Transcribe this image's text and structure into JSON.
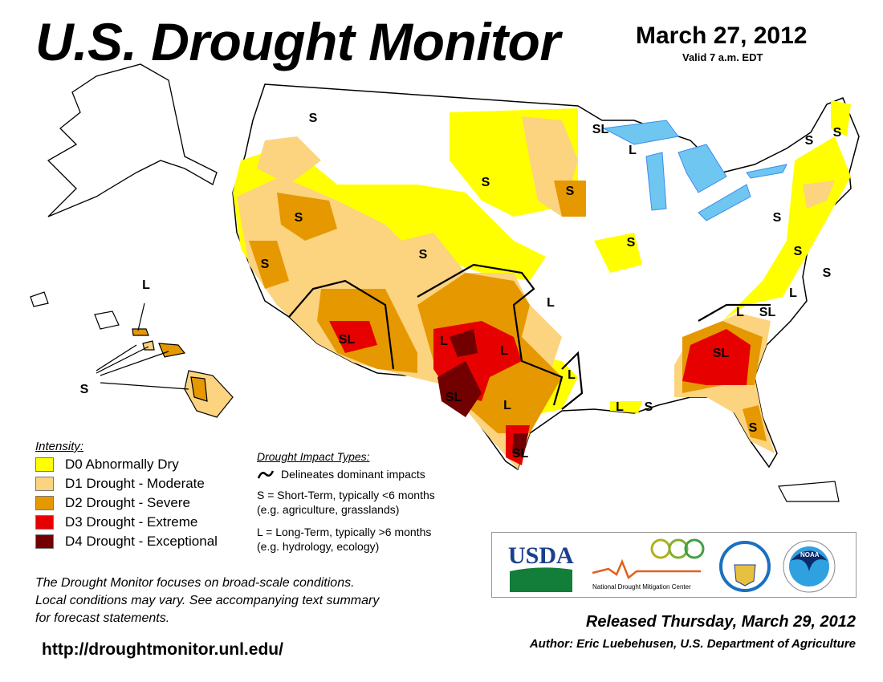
{
  "header": {
    "title": "U.S. Drought Monitor",
    "date": "March 27, 2012",
    "valid": "Valid 7 a.m. EDT"
  },
  "colors": {
    "D0": "#ffff00",
    "D1": "#fcd37f",
    "D2": "#e69800",
    "D3": "#e60000",
    "D4": "#730000",
    "water": "#6fc6f0",
    "river": "#3b8cf0"
  },
  "legend": {
    "title": "Intensity:",
    "items": [
      {
        "code": "D0",
        "label": "D0 Abnormally Dry",
        "color": "#ffff00"
      },
      {
        "code": "D1",
        "label": "D1 Drought - Moderate",
        "color": "#fcd37f"
      },
      {
        "code": "D2",
        "label": "D2 Drought - Severe",
        "color": "#e69800"
      },
      {
        "code": "D3",
        "label": "D3 Drought - Extreme",
        "color": "#e60000"
      },
      {
        "code": "D4",
        "label": "D4 Drought - Exceptional",
        "color": "#730000"
      }
    ]
  },
  "impacts": {
    "title": "Drought Impact Types:",
    "line_label": "Delineates dominant impacts",
    "short_term": "S = Short-Term, typically <6 months",
    "short_term_eg": "(e.g. agriculture, grasslands)",
    "long_term": "L = Long-Term, typically >6 months",
    "long_term_eg": "(e.g. hydrology, ecology)"
  },
  "map_labels": [
    "S",
    "S",
    "SL",
    "L",
    "S",
    "S",
    "S",
    "S",
    "S",
    "S",
    "S",
    "L",
    "L",
    "SL",
    "L",
    "SL",
    "L",
    "L",
    "SL",
    "L",
    "S",
    "SL",
    "L",
    "L",
    "SL",
    "S",
    "S",
    "S",
    "S",
    "L",
    "S"
  ],
  "note": [
    "The Drought Monitor focuses on broad-scale conditions.",
    "Local conditions may vary. See accompanying text summary",
    "for forecast statements."
  ],
  "url": "http://droughtmonitor.unl.edu/",
  "logos": {
    "usda": "USDA",
    "ndmc": "National Drought Mitigation Center",
    "commerce": "Department of Commerce",
    "noaa": "NOAA"
  },
  "footer": {
    "released": "Released Thursday, March 29, 2012",
    "author": "Author: Eric Luebehusen, U.S. Department of Agriculture"
  }
}
